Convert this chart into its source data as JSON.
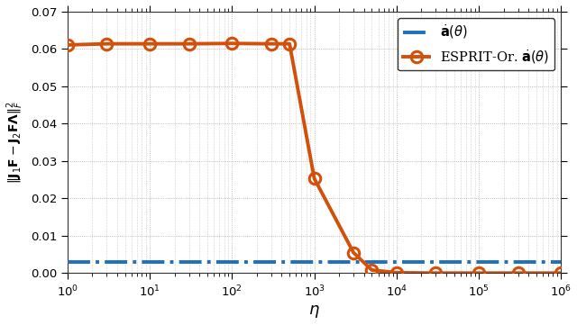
{
  "title": "",
  "xlabel": "$\\eta$",
  "ylabel": "$\\|\\mathbf{J}_1\\mathbf{F} - \\mathbf{J}_2\\mathbf{F}\\boldsymbol{\\Lambda}\\|_F^2$",
  "xlim_log": [
    1.0,
    1000000.0
  ],
  "ylim": [
    0,
    0.07
  ],
  "yticks": [
    0,
    0.01,
    0.02,
    0.03,
    0.04,
    0.05,
    0.06,
    0.07
  ],
  "xticks_log": [
    1.0,
    10.0,
    100.0,
    1000.0,
    10000.0,
    100000.0,
    1000000.0
  ],
  "blue_line_value": 0.003,
  "orange_x": [
    1.0,
    3.0,
    10.0,
    30.0,
    100.0,
    300.0,
    500.0,
    1000.0,
    3000.0,
    5000.0,
    10000.0,
    30000.0,
    100000.0,
    300000.0,
    1000000.0
  ],
  "orange_y": [
    0.061,
    0.0613,
    0.0613,
    0.0613,
    0.0614,
    0.0613,
    0.0613,
    0.0253,
    0.0055,
    0.00085,
    0.00015,
    5e-05,
    5e-05,
    5e-05,
    5e-05
  ],
  "orange_color": "#D2500A",
  "blue_color": "#1F6FBF",
  "legend_label_blue": "$\\dot{\\mathbf{a}}(\\theta)$",
  "legend_label_orange": "ESPRIT-Or. $\\dot{\\mathbf{a}}(\\theta)$",
  "background_color": "#ffffff",
  "grid_color": "#aaaaaa"
}
